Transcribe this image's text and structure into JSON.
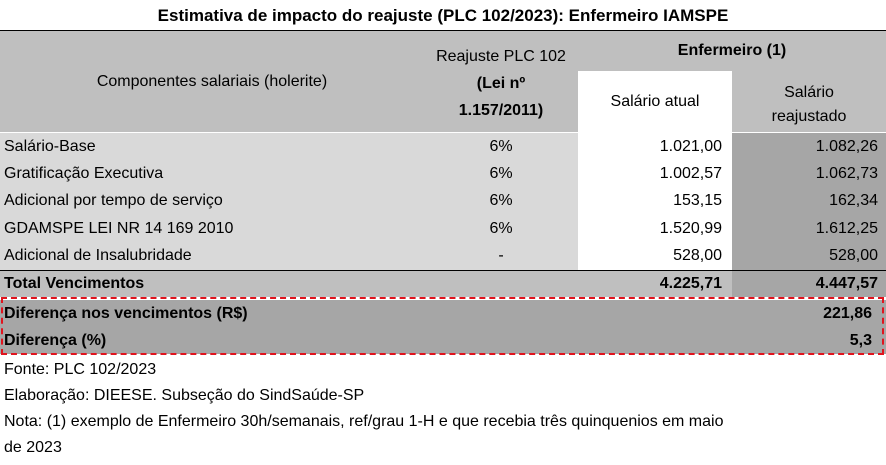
{
  "title": "Estimativa de impacto do reajuste (PLC 102/2023): Enfermeiro IAMSPE",
  "header": {
    "components": "Componentes salariais (holerite)",
    "reajuste_line1": "Reajuste PLC 102",
    "reajuste_line2": "(Lei nº",
    "reajuste_line3": "1.157/2011)",
    "enfermeiro": "Enfermeiro (1)",
    "salario_atual": "Salário atual",
    "salario_reajustado_line1": "Salário",
    "salario_reajustado_line2": "reajustado"
  },
  "rows": [
    {
      "name": "Salário-Base",
      "pct": "6%",
      "atual": "1.021,00",
      "reajustado": "1.082,26"
    },
    {
      "name": "Gratificação Executiva",
      "pct": "6%",
      "atual": "1.002,57",
      "reajustado": "1.062,73"
    },
    {
      "name": "Adicional por tempo de serviço",
      "pct": "6%",
      "atual": "153,15",
      "reajustado": "162,34"
    },
    {
      "name": "GDAMSPE LEI NR 14 169 2010",
      "pct": "6%",
      "atual": "1.520,99",
      "reajustado": "1.612,25"
    },
    {
      "name": "Adicional de Insalubridade",
      "pct": "-",
      "atual": "528,00",
      "reajustado": "528,00"
    }
  ],
  "total": {
    "name": "Total Vencimentos",
    "atual": "4.225,71",
    "reajustado": "4.447,57"
  },
  "diferenca": [
    {
      "label": "Diferença nos vencimentos (R$)",
      "value": "221,86"
    },
    {
      "label": "Diferença (%)",
      "value": "5,3"
    }
  ],
  "notes": {
    "fonte": "Fonte: PLC 102/2023",
    "elaboracao": "Elaboração: DIEESE. Subseção do SindSaúde-SP",
    "nota_line1": "Nota: (1) exemplo de Enfermeiro 30h/semanais, ref/grau 1-H e que recebia três quinquenios em maio",
    "nota_line2": "de 2023"
  },
  "colors": {
    "header_gray": "#bfbfbf",
    "row_gray": "#d9d9d9",
    "dark_gray": "#a6a6a6",
    "dash_red": "#e0141e"
  }
}
